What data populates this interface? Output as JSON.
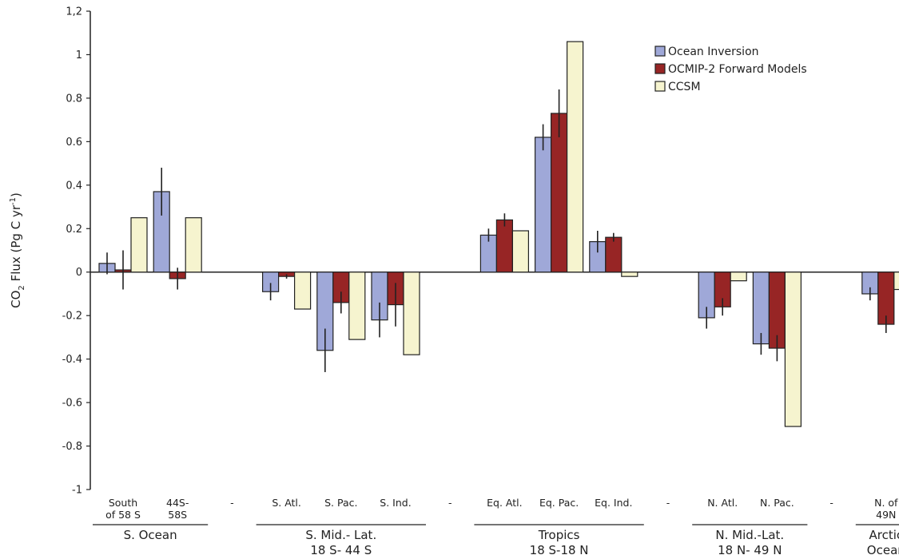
{
  "chart_data": {
    "type": "bar",
    "ylabel": {
      "base": "CO",
      "sub": "2",
      "mid": " Flux (Pg C yr",
      "sup": "-1",
      "end": ")"
    },
    "ylim": [
      -1,
      1.2
    ],
    "yticks": [
      "-1",
      "-0.8",
      "-0.6",
      "-0.4",
      "-0.2",
      "0",
      "0.2",
      "0.4",
      "0.6",
      "0.8",
      "1",
      "1,2"
    ],
    "ytick_values": [
      -1,
      -0.8,
      -0.6,
      -0.4,
      -0.2,
      0,
      0.2,
      0.4,
      0.6,
      0.8,
      1,
      1.2
    ],
    "categories": [
      [
        "South",
        "of 58 S"
      ],
      [
        "44S-",
        "58S"
      ],
      [
        "-"
      ],
      [
        "S. Atl."
      ],
      [
        "S. Pac."
      ],
      [
        "S. Ind."
      ],
      [
        "-"
      ],
      [
        "Eq. Atl."
      ],
      [
        "Eq. Pac."
      ],
      [
        "Eq. Ind."
      ],
      [
        "-"
      ],
      [
        "N. Atl."
      ],
      [
        "N. Pac."
      ],
      [
        "-"
      ],
      [
        "N. of",
        "49N"
      ]
    ],
    "series": [
      {
        "name": "Ocean Inversion",
        "color": "#9fa8d8",
        "values": [
          0.04,
          0.37,
          null,
          -0.09,
          -0.36,
          -0.22,
          null,
          0.17,
          0.62,
          0.14,
          null,
          -0.21,
          -0.33,
          null,
          -0.1
        ],
        "errors": [
          0.05,
          0.11,
          null,
          0.04,
          0.1,
          0.08,
          null,
          0.03,
          0.06,
          0.05,
          null,
          0.05,
          0.05,
          null,
          0.03
        ]
      },
      {
        "name": "OCMIP-2 Forward Models",
        "color": "#972525",
        "values": [
          0.01,
          -0.03,
          null,
          -0.02,
          -0.14,
          -0.15,
          null,
          0.24,
          0.73,
          0.16,
          null,
          -0.16,
          -0.35,
          null,
          -0.24
        ],
        "errors": [
          0.09,
          0.05,
          null,
          0.01,
          0.05,
          0.1,
          null,
          0.03,
          0.11,
          0.02,
          null,
          0.04,
          0.06,
          null,
          0.04
        ]
      },
      {
        "name": "CCSM",
        "color": "#f6f4cf",
        "values": [
          0.25,
          0.25,
          null,
          -0.17,
          -0.31,
          -0.38,
          null,
          0.19,
          1.06,
          -0.02,
          null,
          -0.04,
          -0.71,
          null,
          -0.08
        ],
        "errors": [
          null,
          null,
          null,
          null,
          null,
          null,
          null,
          null,
          null,
          null,
          null,
          null,
          null,
          null,
          null
        ]
      }
    ],
    "groups": [
      {
        "lines": [
          "S. Ocean"
        ],
        "from": 0,
        "to": 1
      },
      {
        "lines": [
          "S. Mid.- Lat.",
          "18 S- 44 S"
        ],
        "from": 3,
        "to": 5
      },
      {
        "lines": [
          "Tropics",
          "18 S-18 N"
        ],
        "from": 7,
        "to": 9
      },
      {
        "lines": [
          "N. Mid.-Lat.",
          "18 N- 49 N"
        ],
        "from": 11,
        "to": 12
      },
      {
        "lines": [
          "Arctic",
          "Ocean"
        ],
        "from": 14,
        "to": 14
      }
    ],
    "legend_position": "top-right",
    "grid": false
  }
}
